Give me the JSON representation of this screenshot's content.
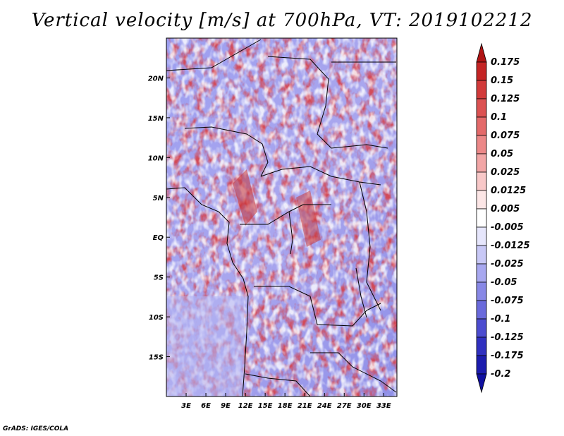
{
  "title": "Vertical velocity [m/s] at 700hPa, VT: 2019102212",
  "footer": "GrADS: IGES/COLA",
  "map": {
    "lon_range": [
      0,
      35
    ],
    "lat_range": [
      -20,
      25
    ],
    "x_ticks": [
      "3E",
      "6E",
      "9E",
      "12E",
      "15E",
      "18E",
      "21E",
      "24E",
      "27E",
      "30E",
      "33E"
    ],
    "x_tick_values": [
      3,
      6,
      9,
      12,
      15,
      18,
      21,
      24,
      27,
      30,
      33
    ],
    "y_ticks": [
      "20N",
      "15N",
      "10N",
      "5N",
      "EQ",
      "5S",
      "10S",
      "15S"
    ],
    "y_tick_values": [
      20,
      15,
      10,
      5,
      0,
      -5,
      -10,
      -15
    ]
  },
  "colorbar": {
    "labels": [
      "0.175",
      "0.15",
      "0.125",
      "0.1",
      "0.075",
      "0.05",
      "0.025",
      "0.0125",
      "0.005",
      "-0.005",
      "-0.0125",
      "-0.025",
      "-0.05",
      "-0.075",
      "-0.1",
      "-0.125",
      "-0.175",
      "-0.2"
    ],
    "colors": [
      "#b01414",
      "#c42424",
      "#d23a3a",
      "#dc5252",
      "#e46a6a",
      "#ec8888",
      "#f2a6a6",
      "#f8c8c8",
      "#fce6e6",
      "#ffffff",
      "#e6e6fc",
      "#c8c8f6",
      "#a8a8f0",
      "#8888e6",
      "#6a6adc",
      "#4c4cd0",
      "#3030c0",
      "#1c1cae",
      "#1010a0"
    ]
  },
  "colors": {
    "positive": "#d23a3a",
    "negative": "#5a5ae0",
    "neutral": "#ffffff",
    "border": "#000000"
  }
}
